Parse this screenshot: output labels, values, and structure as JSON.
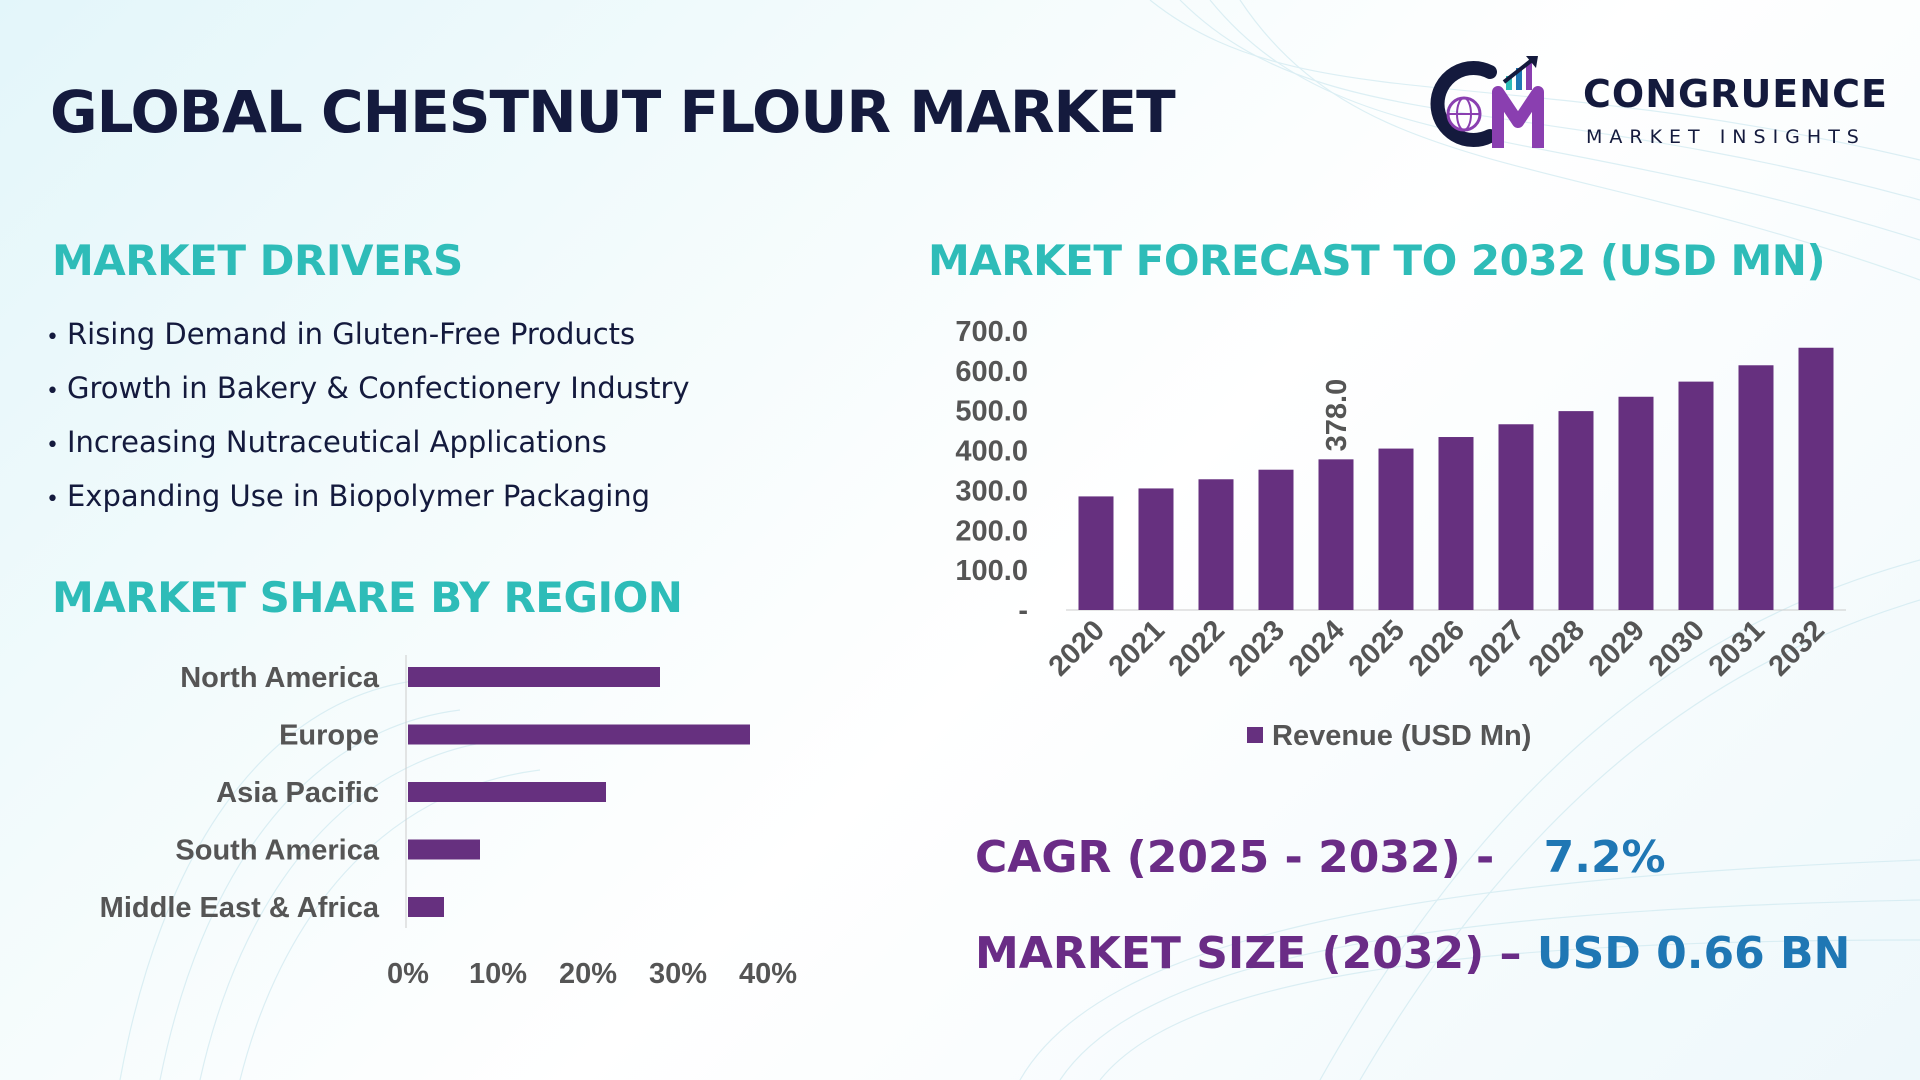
{
  "header": {
    "title": "GLOBAL CHESTNUT FLOUR MARKET",
    "logo_name": "CONGRUENCE",
    "logo_tagline": "MARKET INSIGHTS"
  },
  "drivers": {
    "heading": "MARKET DRIVERS",
    "items": [
      "Rising Demand in Gluten-Free Products",
      "Growth in Bakery & Confectionery Industry",
      "Increasing Nutraceutical Applications",
      "Expanding Use in Biopolymer Packaging"
    ]
  },
  "region": {
    "heading": "MARKET SHARE BY REGION"
  },
  "forecast": {
    "heading": "MARKET FORECAST TO 2032 (USD MN)"
  },
  "stats": {
    "cagr_label": "CAGR (2025 - 2032) -",
    "cagr_value": "7.2%",
    "size_label": "MARKET SIZE (2032) –",
    "size_value": "USD 0.66 BN"
  },
  "colors": {
    "title": "#141a3d",
    "heading": "#2ebcb8",
    "bar": "#66307f",
    "stat_label": "#6a2c86",
    "stat_value": "#1f77b4"
  },
  "chart_data": [
    {
      "type": "bar",
      "orientation": "horizontal",
      "title": "MARKET SHARE BY REGION",
      "categories": [
        "North America",
        "Europe",
        "Asia Pacific",
        "South America",
        "Middle East & Africa"
      ],
      "values": [
        28,
        38,
        22,
        8,
        4
      ],
      "xlim": [
        0,
        40
      ],
      "xticks": [
        0,
        10,
        20,
        30,
        40
      ],
      "xtick_labels": [
        "0%",
        "10%",
        "20%",
        "30%",
        "40%"
      ]
    },
    {
      "type": "bar",
      "title": "MARKET FORECAST TO 2032 (USD MN)",
      "categories": [
        "2020",
        "2021",
        "2022",
        "2023",
        "2024",
        "2025",
        "2026",
        "2027",
        "2028",
        "2029",
        "2030",
        "2031",
        "2032"
      ],
      "series": [
        {
          "name": "Revenue (USD Mn)",
          "values": [
            285,
            305,
            328,
            352,
            378,
            405,
            434,
            466,
            499,
            535,
            573,
            614,
            658
          ]
        }
      ],
      "ylim": [
        0,
        700
      ],
      "yticks": [
        0,
        100,
        200,
        300,
        400,
        500,
        600,
        700
      ],
      "ytick_labels": [
        "-",
        "100.0",
        "200.0",
        "300.0",
        "400.0",
        "500.0",
        "600.0",
        "700.0"
      ],
      "annotations": [
        {
          "category": "2024",
          "text": "378.0"
        }
      ],
      "legend": "bottom"
    }
  ]
}
